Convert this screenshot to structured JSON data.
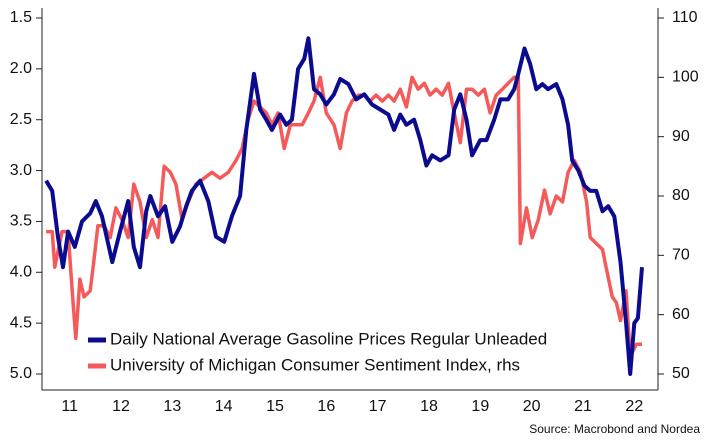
{
  "chart_data": {
    "type": "line",
    "source": "Source: Macrobond and Nordea",
    "xlim": [
      2011,
      2023
    ],
    "xticks": [
      {
        "value": 2011.5,
        "label": "11"
      },
      {
        "value": 2012.5,
        "label": "12"
      },
      {
        "value": 2013.5,
        "label": "13"
      },
      {
        "value": 2014.5,
        "label": "14"
      },
      {
        "value": 2015.5,
        "label": "15"
      },
      {
        "value": 2016.5,
        "label": "16"
      },
      {
        "value": 2017.5,
        "label": "17"
      },
      {
        "value": 2018.5,
        "label": "18"
      },
      {
        "value": 2019.5,
        "label": "19"
      },
      {
        "value": 2020.5,
        "label": "20"
      },
      {
        "value": 2021.5,
        "label": "21"
      },
      {
        "value": 2022.5,
        "label": "22"
      }
    ],
    "ylim": [
      1.5,
      5.0
    ],
    "y_reversed": true,
    "yticks": [
      1.5,
      {
        "value": 2,
        "label": "2.0"
      },
      2.5,
      {
        "value": 3,
        "label": "3.0"
      },
      3.5,
      {
        "value": 4,
        "label": "4.0"
      },
      4.5,
      {
        "value": 5,
        "label": "5.0"
      }
    ],
    "y2lim": [
      50,
      110
    ],
    "y2ticks": [
      50,
      60,
      70,
      80,
      90,
      100,
      110
    ],
    "series": [
      {
        "name": "Daily National Average Gasoline Prices Regular Unleaded",
        "color": "#0b0b8f",
        "x": [
          2011.04,
          2011.16,
          2011.27,
          2011.37,
          2011.47,
          2011.6,
          2011.74,
          2011.9,
          2012.01,
          2012.13,
          2012.33,
          2012.48,
          2012.64,
          2012.75,
          2012.87,
          2012.99,
          2013.07,
          2013.22,
          2013.36,
          2013.5,
          2013.65,
          2013.77,
          2013.88,
          2014.04,
          2014.2,
          2014.35,
          2014.51,
          2014.66,
          2014.82,
          2014.94,
          2015.09,
          2015.21,
          2015.33,
          2015.44,
          2015.6,
          2015.72,
          2015.83,
          2015.95,
          2016.07,
          2016.15,
          2016.26,
          2016.38,
          2016.5,
          2016.65,
          2016.77,
          2016.93,
          2017.08,
          2017.24,
          2017.39,
          2017.55,
          2017.71,
          2017.82,
          2017.94,
          2018.06,
          2018.21,
          2018.33,
          2018.45,
          2018.56,
          2018.72,
          2018.88,
          2018.99,
          2019.11,
          2019.23,
          2019.34,
          2019.5,
          2019.62,
          2019.77,
          2019.89,
          2020.04,
          2020.16,
          2020.24,
          2020.36,
          2020.47,
          2020.59,
          2020.71,
          2020.82,
          2020.98,
          2021.1,
          2021.21,
          2021.29,
          2021.41,
          2021.53,
          2021.64,
          2021.76,
          2021.88,
          2021.99,
          2022.11,
          2022.23,
          2022.34,
          2022.42,
          2022.5,
          2022.57,
          2022.65
        ],
        "values": [
          3.1,
          3.2,
          3.65,
          3.95,
          3.6,
          3.75,
          3.5,
          3.42,
          3.3,
          3.45,
          3.9,
          3.6,
          3.3,
          3.75,
          3.95,
          3.4,
          3.25,
          3.45,
          3.35,
          3.7,
          3.55,
          3.35,
          3.2,
          3.1,
          3.3,
          3.65,
          3.7,
          3.45,
          3.25,
          2.6,
          2.05,
          2.4,
          2.5,
          2.6,
          2.45,
          2.55,
          2.5,
          2.0,
          1.9,
          1.7,
          2.2,
          2.25,
          2.35,
          2.25,
          2.1,
          2.15,
          2.3,
          2.25,
          2.35,
          2.4,
          2.45,
          2.6,
          2.45,
          2.55,
          2.5,
          2.7,
          2.95,
          2.85,
          2.9,
          2.85,
          2.4,
          2.25,
          2.5,
          2.85,
          2.7,
          2.7,
          2.5,
          2.3,
          2.3,
          2.2,
          2.05,
          1.8,
          1.95,
          2.2,
          2.15,
          2.2,
          2.15,
          2.3,
          2.55,
          2.9,
          3.0,
          3.15,
          3.2,
          3.2,
          3.4,
          3.35,
          3.45,
          3.9,
          4.5,
          5.0,
          4.5,
          4.45,
          3.95
        ]
      },
      {
        "name": "University of Michigan Consumer Sentiment Index, rhs",
        "color": "#f55a5a",
        "axis": "y2",
        "x": [
          2011.04,
          2011.16,
          2011.21,
          2011.35,
          2011.47,
          2011.55,
          2011.62,
          2011.7,
          2011.78,
          2011.9,
          2011.97,
          2012.05,
          2012.17,
          2012.29,
          2012.4,
          2012.52,
          2012.64,
          2012.75,
          2012.87,
          2012.99,
          2013.11,
          2013.22,
          2013.34,
          2013.46,
          2013.57,
          2013.69,
          2013.81,
          2013.96,
          2014.12,
          2014.27,
          2014.43,
          2014.59,
          2014.74,
          2014.86,
          2014.98,
          2015.09,
          2015.21,
          2015.33,
          2015.44,
          2015.56,
          2015.68,
          2015.8,
          2015.91,
          2016.03,
          2016.15,
          2016.26,
          2016.38,
          2016.5,
          2016.65,
          2016.77,
          2016.89,
          2017.0,
          2017.12,
          2017.24,
          2017.35,
          2017.47,
          2017.59,
          2017.71,
          2017.82,
          2017.94,
          2018.06,
          2018.17,
          2018.29,
          2018.41,
          2018.52,
          2018.64,
          2018.76,
          2018.88,
          2018.99,
          2019.11,
          2019.23,
          2019.34,
          2019.46,
          2019.58,
          2019.69,
          2019.81,
          2019.93,
          2020.04,
          2020.16,
          2020.24,
          2020.28,
          2020.4,
          2020.51,
          2020.63,
          2020.75,
          2020.86,
          2020.98,
          2021.1,
          2021.21,
          2021.33,
          2021.45,
          2021.57,
          2021.64,
          2021.76,
          2021.88,
          2021.95,
          2022.07,
          2022.15,
          2022.23,
          2022.34,
          2022.42,
          2022.54,
          2022.65
        ],
        "values": [
          74,
          74,
          68,
          74,
          74,
          64,
          56,
          66,
          63,
          64,
          69,
          75,
          75,
          73,
          78,
          76,
          73,
          82,
          79,
          73,
          76,
          73,
          85,
          84,
          82,
          76,
          79,
          82,
          83,
          84,
          83,
          84,
          86,
          88,
          93,
          96,
          95,
          94,
          92,
          94,
          88,
          92,
          92,
          92,
          94,
          96,
          100,
          94,
          92,
          88,
          94,
          96,
          97,
          97,
          96,
          97,
          96,
          97,
          96,
          98,
          95,
          100,
          98,
          99,
          97,
          98,
          97,
          99,
          94,
          89,
          98,
          98,
          97,
          98,
          94,
          97,
          98,
          99,
          100,
          100,
          72,
          78,
          73,
          76,
          81,
          77,
          80,
          79,
          84,
          86,
          84,
          79,
          73,
          72,
          71,
          68,
          63,
          62,
          59,
          64,
          53,
          55,
          55
        ]
      }
    ],
    "legend": "lower left"
  }
}
